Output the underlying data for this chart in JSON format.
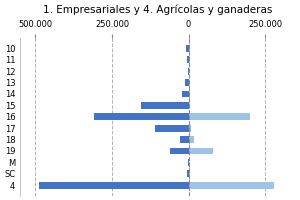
{
  "title": "1. Empresariales y 4. Agrícolas y ganaderas",
  "categories": [
    "10",
    "11",
    "12",
    "13",
    "14",
    "15",
    "16",
    "17",
    "18",
    "19",
    "M",
    "SC",
    "4"
  ],
  "series1_values": [
    -8000,
    -4000,
    -1000,
    -12000,
    -20000,
    -155000,
    -310000,
    -110000,
    -28000,
    -62000,
    -3000,
    -4000,
    -490000
  ],
  "series2_values": [
    0,
    0,
    0,
    0,
    6000,
    0,
    200000,
    8000,
    18000,
    80000,
    0,
    0,
    280000
  ],
  "color1": "#4472C4",
  "color2": "#9DC3E6",
  "xlim": [
    -550000,
    350000
  ],
  "xticks": [
    -500000,
    -250000,
    0,
    250000
  ],
  "xticklabels": [
    "500.000",
    "250.000",
    "0",
    "250.000"
  ],
  "background_color": "#ffffff",
  "grid_color": "#b0b0b0",
  "title_fontsize": 7.5,
  "tick_fontsize": 6
}
